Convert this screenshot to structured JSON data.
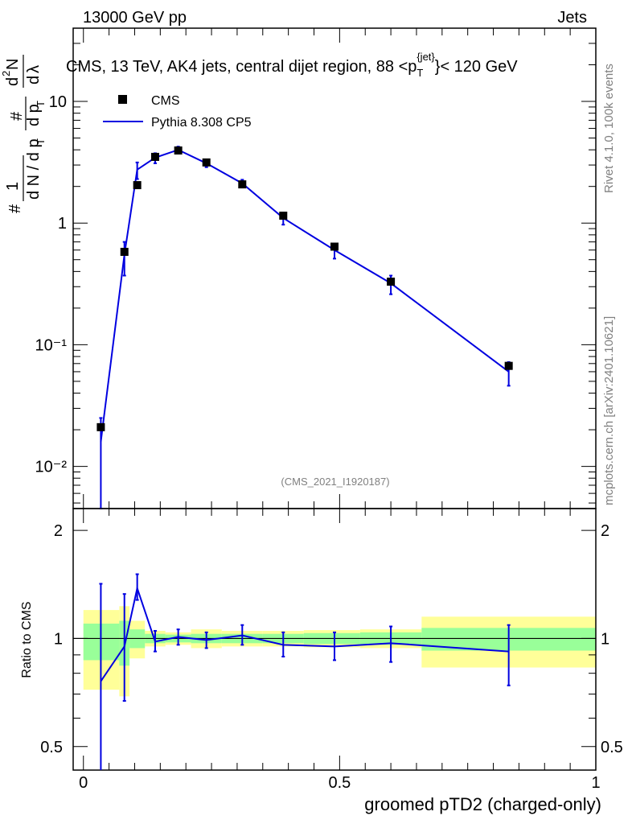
{
  "header": {
    "left": "13000 GeV pp",
    "right": "Jets"
  },
  "side_labels": {
    "rivet": "Rivet 4.1.0,  100k events",
    "mcplots": "mcplots.cern.ch [arXiv:2401.10621]"
  },
  "main_plot": {
    "title_prefix": "CMS, 13 TeV, AK4 jets, central dijet region, 88 <p",
    "title_sub": "T",
    "title_sup": "{jet}",
    "title_suffix": "}< 120 GeV",
    "ylabel_parts": [
      "#",
      "1",
      "d N / d p",
      "T",
      "#",
      "d p",
      "T",
      "d",
      "2",
      "N",
      "d",
      "λ"
    ],
    "analysis_tag": "(CMS_2021_I1920187)",
    "y_tick_labels": [
      "10⁻²",
      "10⁻¹",
      "1",
      "10"
    ],
    "legend": [
      {
        "label": "CMS",
        "style": "marker"
      },
      {
        "label": "Pythia 8.308 CP5",
        "style": "line"
      }
    ]
  },
  "ratio_plot": {
    "ylabel": "Ratio to CMS",
    "xlabel": "groomed pTD2 (charged-only)",
    "x_tick_labels": [
      "0",
      "0.5",
      "1"
    ],
    "y_tick_labels": [
      "0.5",
      "1",
      "2"
    ]
  },
  "colors": {
    "data": "#000000",
    "mc": "#0000e0",
    "band_inner": "#99ff99",
    "band_outer": "#ffff99"
  },
  "chart_data": {
    "type": "scatter",
    "x": [
      0.034,
      0.08,
      0.105,
      0.14,
      0.185,
      0.24,
      0.31,
      0.39,
      0.49,
      0.6,
      0.83
    ],
    "bin_edges": [
      0,
      0.07,
      0.09,
      0.12,
      0.16,
      0.21,
      0.27,
      0.35,
      0.43,
      0.54,
      0.66,
      1.0
    ],
    "series": [
      {
        "name": "CMS",
        "values": [
          0.021,
          0.58,
          2.05,
          3.5,
          3.95,
          3.15,
          2.08,
          1.15,
          0.64,
          0.33,
          0.067
        ]
      },
      {
        "name": "Pythia 8.308 CP5",
        "values": [
          0.016,
          0.55,
          2.75,
          3.45,
          4.0,
          3.1,
          2.12,
          1.1,
          0.6,
          0.32,
          0.06
        ],
        "err_low": [
          0.016,
          0.18,
          0.45,
          0.35,
          0.28,
          0.22,
          0.16,
          0.13,
          0.09,
          0.06,
          0.014
        ],
        "err_high": [
          0.009,
          0.15,
          0.4,
          0.3,
          0.25,
          0.2,
          0.15,
          0.12,
          0.08,
          0.05,
          0.012
        ]
      }
    ],
    "ratio": {
      "values": [
        0.76,
        0.95,
        1.38,
        0.98,
        1.01,
        0.99,
        1.02,
        0.96,
        0.95,
        0.97,
        0.92
      ],
      "err_low": [
        0.76,
        0.28,
        0.1,
        0.06,
        0.05,
        0.05,
        0.06,
        0.07,
        0.08,
        0.11,
        0.18
      ],
      "err_high": [
        0.66,
        0.38,
        0.13,
        0.07,
        0.05,
        0.05,
        0.07,
        0.08,
        0.09,
        0.11,
        0.17
      ]
    },
    "band_inner": [
      {
        "lo": 0.87,
        "hi": 1.1
      },
      {
        "lo": 0.84,
        "hi": 1.12
      },
      {
        "lo": 0.94,
        "hi": 1.06
      },
      {
        "lo": 0.97,
        "hi": 1.03
      },
      {
        "lo": 0.975,
        "hi": 1.025
      },
      {
        "lo": 0.97,
        "hi": 1.03
      },
      {
        "lo": 0.97,
        "hi": 1.03
      },
      {
        "lo": 0.97,
        "hi": 1.03
      },
      {
        "lo": 0.965,
        "hi": 1.035
      },
      {
        "lo": 0.96,
        "hi": 1.04
      },
      {
        "lo": 0.925,
        "hi": 1.07
      }
    ],
    "band_outer": [
      {
        "lo": 0.72,
        "hi": 1.2
      },
      {
        "lo": 0.69,
        "hi": 1.23
      },
      {
        "lo": 0.88,
        "hi": 1.12
      },
      {
        "lo": 0.95,
        "hi": 1.05
      },
      {
        "lo": 0.96,
        "hi": 1.04
      },
      {
        "lo": 0.94,
        "hi": 1.06
      },
      {
        "lo": 0.95,
        "hi": 1.05
      },
      {
        "lo": 0.95,
        "hi": 1.05
      },
      {
        "lo": 0.945,
        "hi": 1.055
      },
      {
        "lo": 0.94,
        "hi": 1.06
      },
      {
        "lo": 0.83,
        "hi": 1.15
      }
    ],
    "xlim": [
      -0.02,
      1.0
    ],
    "ylim_main": [
      0.0045,
      40
    ],
    "ylim_ratio": [
      0.43,
      2.3
    ],
    "yscale": "log",
    "xlabel": "groomed pTD2 (charged-only)",
    "ylabel_ratio": "Ratio to CMS",
    "legend_position": "top-left"
  }
}
